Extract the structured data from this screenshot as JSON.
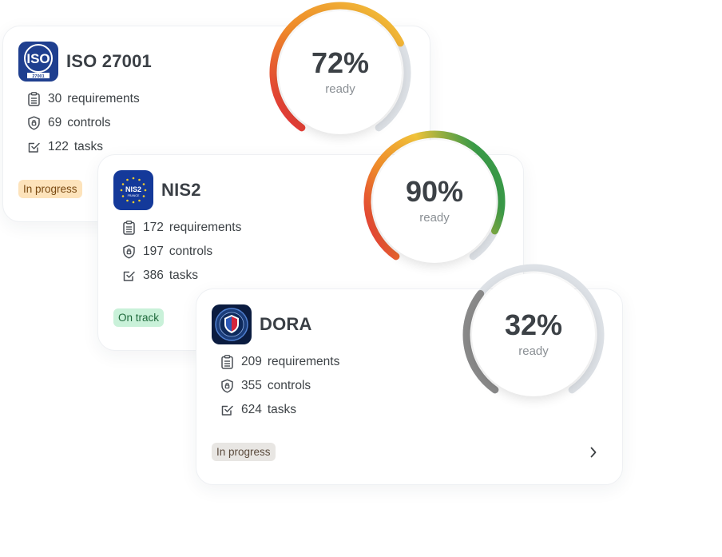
{
  "colors": {
    "gradient_red": "#e0283a",
    "gradient_orange": "#f0892a",
    "gradient_yellow": "#f1c33a",
    "gradient_green": "#3a9a48",
    "track_gray": "#dde1e6",
    "dora_arc": "#8a8a8a"
  },
  "cards": [
    {
      "title": "ISO 27001",
      "logo_text": "ISO",
      "logo_sub": "27001",
      "stats": [
        {
          "num": "30",
          "label": "requirements",
          "icon": "clipboard-icon"
        },
        {
          "num": "69",
          "label": "controls",
          "icon": "shield-icon"
        },
        {
          "num": "122",
          "label": "tasks",
          "icon": "checkbox-icon"
        }
      ],
      "status": "In progress",
      "progress": 72,
      "progress_label": "72%",
      "ready": "ready"
    },
    {
      "title": "NIS2",
      "logo_text": "NIS2",
      "logo_sub": "FRANCE",
      "stats": [
        {
          "num": "172",
          "label": "requirements",
          "icon": "clipboard-icon"
        },
        {
          "num": "197",
          "label": "controls",
          "icon": "shield-icon"
        },
        {
          "num": "386",
          "label": "tasks",
          "icon": "checkbox-icon"
        }
      ],
      "status": "On track",
      "progress": 90,
      "progress_label": "90%",
      "ready": "ready"
    },
    {
      "title": "DORA",
      "stats": [
        {
          "num": "209",
          "label": "requirements",
          "icon": "clipboard-icon"
        },
        {
          "num": "355",
          "label": "controls",
          "icon": "shield-icon"
        },
        {
          "num": "624",
          "label": "tasks",
          "icon": "checkbox-icon"
        }
      ],
      "status": "In progress",
      "progress": 32,
      "progress_label": "32%",
      "ready": "ready"
    }
  ]
}
